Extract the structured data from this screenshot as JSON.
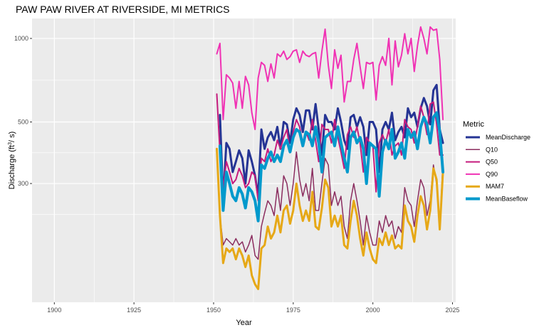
{
  "chart_data": {
    "type": "line",
    "title": "PAW PAW RIVER AT RIVERSIDE, MI  METRICS",
    "xlabel": "Year",
    "ylabel_main": "Discharge (ft",
    "ylabel_sup": "3",
    "ylabel_tail": "/ s)",
    "x_scale": "linear",
    "y_scale": "log10",
    "xlim": [
      1893,
      2026
    ],
    "ylim": [
      112,
      1180
    ],
    "x_ticks": [
      1900,
      1925,
      1950,
      1975,
      2000,
      2025
    ],
    "y_ticks": [
      300,
      500,
      1000
    ],
    "grid": true,
    "legend_title": "Metric",
    "legend_position": "right",
    "panel_background": "#ebebeb",
    "grid_color": "#ffffff",
    "series": [
      {
        "name": "MeanDischarge",
        "color": "#253494",
        "line_width": 3,
        "x": [
          1952,
          1953,
          1954,
          1955,
          1956,
          1957,
          1958,
          1959,
          1960,
          1961,
          1962,
          1963,
          1964,
          1965,
          1966,
          1967,
          1968,
          1969,
          1970,
          1971,
          1972,
          1973,
          1974,
          1975,
          1976,
          1977,
          1978,
          1979,
          1980,
          1981,
          1982,
          1983,
          1984,
          1985,
          1986,
          1987,
          1988,
          1989,
          1990,
          1991,
          1992,
          1993,
          1994,
          1995,
          1996,
          1997,
          1998,
          1999,
          2000,
          2001,
          2002,
          2003,
          2004,
          2005,
          2006,
          2007,
          2008,
          2009,
          2010,
          2011,
          2012,
          2013,
          2014,
          2015,
          2016,
          2017,
          2018,
          2019,
          2020,
          2021,
          2022
        ],
        "values": [
          530,
          260,
          420,
          400,
          330,
          360,
          395,
          370,
          300,
          395,
          360,
          320,
          270,
          470,
          400,
          440,
          460,
          430,
          480,
          400,
          500,
          490,
          420,
          510,
          560,
          530,
          460,
          550,
          550,
          470,
          580,
          470,
          380,
          530,
          500,
          500,
          470,
          560,
          500,
          430,
          400,
          520,
          530,
          480,
          520,
          480,
          380,
          500,
          500,
          470,
          330,
          470,
          500,
          470,
          540,
          430,
          460,
          480,
          440,
          560,
          520,
          540,
          480,
          560,
          610,
          570,
          490,
          650,
          680,
          470,
          420
        ]
      },
      {
        "name": "Q10",
        "color": "#8b2d5f",
        "line_width": 1.5,
        "x": [
          1951,
          1952,
          1953,
          1954,
          1955,
          1956,
          1957,
          1958,
          1959,
          1960,
          1961,
          1962,
          1963,
          1964,
          1965,
          1966,
          1967,
          1968,
          1969,
          1970,
          1971,
          1972,
          1973,
          1974,
          1975,
          1976,
          1977,
          1978,
          1979,
          1980,
          1981,
          1982,
          1983,
          1984,
          1985,
          1986,
          1987,
          1988,
          1989,
          1990,
          1991,
          1992,
          1993,
          1994,
          1995,
          1996,
          1997,
          1998,
          1999,
          2000,
          2001,
          2002,
          2003,
          2004,
          2005,
          2006,
          2007,
          2008,
          2009,
          2010,
          2011,
          2012,
          2013,
          2014,
          2015,
          2016,
          2017,
          2018,
          2019,
          2020,
          2021,
          2022
        ],
        "values": [
          400,
          230,
          180,
          190,
          185,
          180,
          190,
          180,
          185,
          170,
          180,
          195,
          165,
          160,
          210,
          235,
          260,
          250,
          230,
          290,
          240,
          320,
          300,
          250,
          300,
          390,
          310,
          270,
          300,
          260,
          340,
          240,
          240,
          300,
          370,
          350,
          250,
          280,
          250,
          270,
          210,
          190,
          260,
          300,
          260,
          220,
          180,
          230,
          200,
          180,
          180,
          220,
          200,
          230,
          210,
          220,
          190,
          210,
          200,
          290,
          260,
          250,
          210,
          260,
          310,
          290,
          230,
          260,
          350,
          300,
          210,
          360
        ]
      },
      {
        "name": "Q50",
        "color": "#c51b7d",
        "line_width": 2,
        "x": [
          1951,
          1952,
          1953,
          1954,
          1955,
          1956,
          1957,
          1958,
          1959,
          1960,
          1961,
          1962,
          1963,
          1964,
          1965,
          1966,
          1967,
          1968,
          1969,
          1970,
          1971,
          1972,
          1973,
          1974,
          1975,
          1976,
          1977,
          1978,
          1979,
          1980,
          1981,
          1982,
          1983,
          1984,
          1985,
          1986,
          1987,
          1988,
          1989,
          1990,
          1991,
          1992,
          1993,
          1994,
          1995,
          1996,
          1997,
          1998,
          1999,
          2000,
          2001,
          2002,
          2003,
          2004,
          2005,
          2006,
          2007,
          2008,
          2009,
          2010,
          2011,
          2012,
          2013,
          2014,
          2015,
          2016,
          2017,
          2018,
          2019,
          2020,
          2021,
          2022
        ],
        "values": [
          630,
          390,
          290,
          360,
          330,
          300,
          310,
          340,
          320,
          290,
          300,
          330,
          320,
          260,
          370,
          360,
          400,
          360,
          380,
          430,
          400,
          440,
          470,
          390,
          460,
          510,
          480,
          420,
          460,
          430,
          510,
          430,
          360,
          490,
          470,
          470,
          420,
          510,
          440,
          390,
          340,
          450,
          480,
          440,
          480,
          420,
          330,
          440,
          420,
          410,
          280,
          420,
          450,
          420,
          470,
          380,
          410,
          420,
          380,
          510,
          480,
          470,
          420,
          480,
          570,
          520,
          450,
          580,
          590,
          490,
          380,
          380
        ]
      },
      {
        "name": "Q90",
        "color": "#f032b4",
        "line_width": 2,
        "x": [
          1951,
          1952,
          1953,
          1954,
          1955,
          1956,
          1957,
          1958,
          1959,
          1960,
          1961,
          1962,
          1963,
          1964,
          1965,
          1966,
          1967,
          1968,
          1969,
          1970,
          1971,
          1972,
          1973,
          1974,
          1975,
          1976,
          1977,
          1978,
          1979,
          1980,
          1981,
          1982,
          1983,
          1984,
          1985,
          1986,
          1987,
          1988,
          1989,
          1990,
          1991,
          1992,
          1993,
          1994,
          1995,
          1996,
          1997,
          1998,
          1999,
          2000,
          2001,
          2002,
          2003,
          2004,
          2005,
          2006,
          2007,
          2008,
          2009,
          2010,
          2011,
          2012,
          2013,
          2014,
          2015,
          2016,
          2017,
          2018,
          2019,
          2020,
          2021,
          2022
        ],
        "values": [
          880,
          960,
          510,
          740,
          720,
          690,
          560,
          700,
          560,
          730,
          680,
          540,
          470,
          720,
          820,
          800,
          700,
          810,
          720,
          880,
          860,
          900,
          840,
          860,
          900,
          910,
          820,
          900,
          870,
          860,
          880,
          890,
          720,
          900,
          1080,
          800,
          660,
          910,
          780,
          870,
          590,
          700,
          700,
          840,
          960,
          790,
          660,
          820,
          810,
          820,
          600,
          800,
          860,
          800,
          1000,
          680,
          980,
          790,
          870,
          1040,
          880,
          1000,
          760,
          940,
          1100,
          1000,
          880,
          1100,
          1070,
          1080,
          840,
          510
        ]
      },
      {
        "name": "MAM7",
        "color": "#e6a817",
        "line_width": 3,
        "x": [
          1951,
          1952,
          1953,
          1954,
          1955,
          1956,
          1957,
          1958,
          1959,
          1960,
          1961,
          1962,
          1963,
          1964,
          1965,
          1966,
          1967,
          1968,
          1969,
          1970,
          1971,
          1972,
          1973,
          1974,
          1975,
          1976,
          1977,
          1978,
          1979,
          1980,
          1981,
          1982,
          1983,
          1984,
          1985,
          1986,
          1987,
          1988,
          1989,
          1990,
          1991,
          1992,
          1993,
          1994,
          1995,
          1996,
          1997,
          1998,
          1999,
          2000,
          2001,
          2002,
          2003,
          2004,
          2005,
          2006,
          2007,
          2008,
          2009,
          2010,
          2011,
          2012,
          2013,
          2014,
          2015,
          2016,
          2017,
          2018,
          2019,
          2020,
          2021,
          2022
        ],
        "values": [
          400,
          230,
          155,
          175,
          170,
          175,
          160,
          175,
          165,
          150,
          165,
          140,
          130,
          125,
          175,
          180,
          210,
          190,
          200,
          230,
          200,
          240,
          250,
          215,
          240,
          300,
          250,
          220,
          240,
          220,
          280,
          210,
          205,
          245,
          310,
          290,
          210,
          230,
          210,
          230,
          180,
          175,
          220,
          260,
          230,
          190,
          165,
          200,
          175,
          160,
          155,
          190,
          180,
          200,
          180,
          195,
          175,
          180,
          175,
          250,
          220,
          210,
          185,
          230,
          270,
          250,
          205,
          240,
          340,
          310,
          205,
          330
        ]
      },
      {
        "name": "MeanBaseflow",
        "color": "#0099cc",
        "line_width": 4,
        "x": [
          1952,
          1953,
          1954,
          1955,
          1956,
          1957,
          1958,
          1959,
          1960,
          1961,
          1962,
          1963,
          1964,
          1965,
          1966,
          1967,
          1968,
          1969,
          1970,
          1971,
          1972,
          1973,
          1974,
          1975,
          1976,
          1977,
          1978,
          1979,
          1980,
          1981,
          1982,
          1983,
          1984,
          1985,
          1986,
          1987,
          1988,
          1989,
          1990,
          1991,
          1992,
          1993,
          1994,
          1995,
          1996,
          1997,
          1998,
          1999,
          2000,
          2001,
          2002,
          2003,
          2004,
          2005,
          2006,
          2007,
          2008,
          2009,
          2010,
          2011,
          2012,
          2013,
          2014,
          2015,
          2016,
          2017,
          2018,
          2019,
          2020,
          2021,
          2022
        ],
        "values": [
          410,
          240,
          330,
          300,
          270,
          260,
          290,
          275,
          245,
          290,
          280,
          260,
          220,
          350,
          340,
          370,
          390,
          360,
          380,
          360,
          410,
          430,
          390,
          440,
          470,
          460,
          410,
          460,
          450,
          410,
          480,
          420,
          330,
          440,
          450,
          460,
          410,
          480,
          420,
          370,
          330,
          440,
          460,
          420,
          440,
          400,
          300,
          420,
          410,
          400,
          270,
          390,
          430,
          400,
          470,
          370,
          390,
          420,
          370,
          470,
          440,
          460,
          400,
          480,
          520,
          490,
          420,
          520,
          540,
          460,
          330
        ]
      }
    ]
  }
}
